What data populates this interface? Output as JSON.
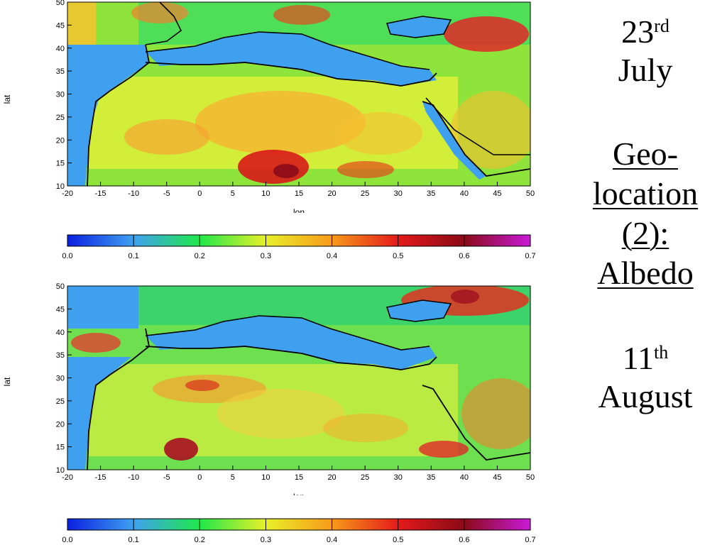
{
  "side_label": {
    "date_top_day": "23",
    "date_top_suffix": "rd",
    "date_top_month": "July",
    "heading_line1": "Geo-",
    "heading_line2": "location",
    "heading_line3": "(2):",
    "heading_line4": "Albedo",
    "date_bottom_day": "11",
    "date_bottom_suffix": "th",
    "date_bottom_month": "August"
  },
  "maps": [
    {
      "xlabel": "lon",
      "ylabel": "lat",
      "x_range": [
        -20,
        50
      ],
      "y_range": [
        10,
        50
      ],
      "x_ticks": [
        "-20",
        "-15",
        "-10",
        "-5",
        "0",
        "5",
        "10",
        "15",
        "20",
        "25",
        "30",
        "35",
        "40",
        "45",
        "50"
      ],
      "y_ticks": [
        "10",
        "15",
        "20",
        "25",
        "30",
        "35",
        "40",
        "45",
        "50"
      ],
      "colorbar": {
        "range": [
          0.0,
          0.7
        ],
        "ticks": [
          "0.0",
          "0.1",
          "0.2",
          "0.3",
          "0.4",
          "0.5",
          "0.6",
          "0.7"
        ],
        "colors": [
          "#0a20e0",
          "#3fa0f0",
          "#1ee84a",
          "#e8f028",
          "#f79a1a",
          "#e41a1a",
          "#8a0a18",
          "#c81ad8"
        ]
      }
    },
    {
      "xlabel": "lon",
      "ylabel": "lat",
      "x_range": [
        -20,
        50
      ],
      "y_range": [
        10,
        50
      ],
      "x_ticks": [
        "-20",
        "-15",
        "-10",
        "-5",
        "0",
        "5",
        "10",
        "15",
        "20",
        "25",
        "30",
        "35",
        "40",
        "45",
        "50"
      ],
      "y_ticks": [
        "10",
        "15",
        "20",
        "25",
        "30",
        "35",
        "40",
        "45",
        "50"
      ],
      "colorbar": {
        "range": [
          0.0,
          0.7
        ],
        "ticks": [
          "0.0",
          "0.1",
          "0.2",
          "0.3",
          "0.4",
          "0.5",
          "0.6",
          "0.7"
        ],
        "colors": [
          "#0a20e0",
          "#3fa0f0",
          "#1ee84a",
          "#e8f028",
          "#f79a1a",
          "#e41a1a",
          "#8a0a18",
          "#c81ad8"
        ]
      }
    }
  ]
}
